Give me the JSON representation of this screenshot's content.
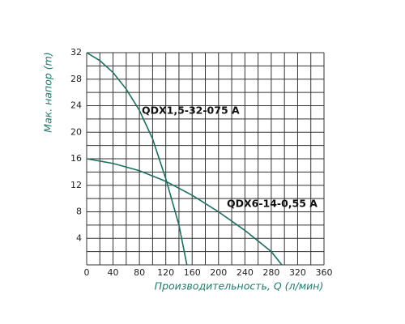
{
  "chart_data": {
    "type": "line",
    "x_label": "Производительность, Q (л/мин)",
    "y_label": "Мак. напор (m)",
    "xlim": [
      0,
      360
    ],
    "xticks": [
      0,
      40,
      80,
      120,
      160,
      200,
      240,
      280,
      320,
      360
    ],
    "ylim": [
      0,
      32
    ],
    "yticks": [
      4,
      8,
      12,
      16,
      20,
      24,
      28,
      32
    ],
    "xgrid": [
      0,
      20,
      40,
      60,
      80,
      100,
      120,
      140,
      160,
      180,
      200,
      220,
      240,
      260,
      280,
      300,
      320,
      340,
      360
    ],
    "ygrid": [
      0,
      2,
      4,
      6,
      8,
      10,
      12,
      14,
      16,
      18,
      20,
      22,
      24,
      26,
      28,
      30,
      32
    ],
    "grid": true,
    "series": [
      {
        "name": "QDX1,5-32-075 A",
        "color": "#1b6f60",
        "x": [
          0,
          20,
          40,
          60,
          80,
          100,
          120,
          140,
          152
        ],
        "values": [
          32,
          30.8,
          29,
          26.5,
          23.3,
          19,
          13,
          6,
          0
        ]
      },
      {
        "name": "QDX6-14-0,55 A",
        "color": "#1b6f60",
        "x": [
          0,
          40,
          80,
          120,
          160,
          200,
          240,
          280,
          296
        ],
        "values": [
          16,
          15.3,
          14.2,
          12.6,
          10.5,
          8,
          5.2,
          2,
          0
        ]
      }
    ]
  }
}
